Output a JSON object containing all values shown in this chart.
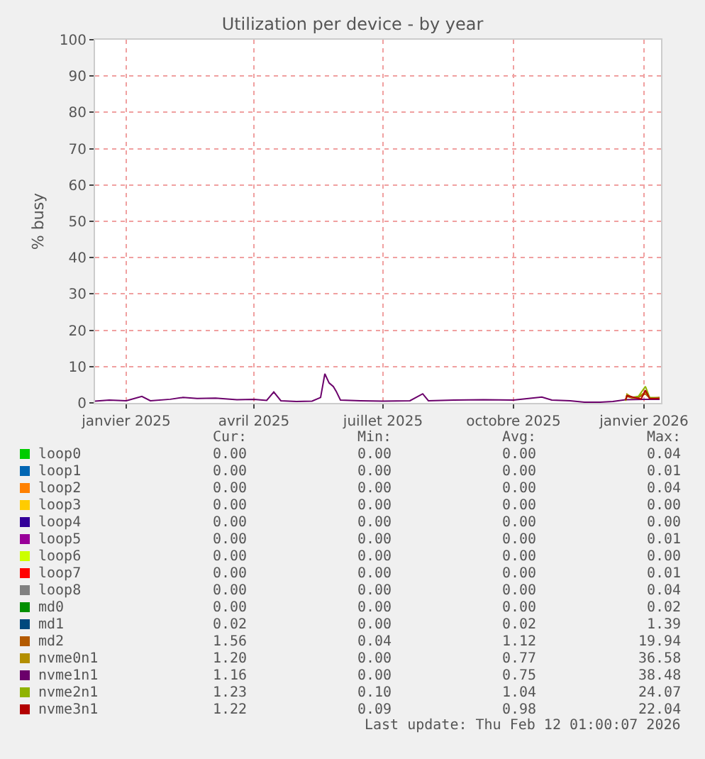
{
  "chart_data": {
    "type": "line",
    "title": "Utilization per device - by year",
    "ylabel": "% busy",
    "xlim": [
      "2024-12-10",
      "2026-01-13"
    ],
    "xticks": [
      {
        "value": "2025-01-01",
        "label": "janvier 2025"
      },
      {
        "value": "2025-04-01",
        "label": "avril 2025"
      },
      {
        "value": "2025-07-01",
        "label": "juillet 2025"
      },
      {
        "value": "2025-10-01",
        "label": "octobre 2025"
      },
      {
        "value": "2026-01-01",
        "label": "janvier 2026"
      }
    ],
    "ylim": [
      0,
      100
    ],
    "yticks": [
      0,
      10,
      20,
      30,
      40,
      50,
      60,
      70,
      80,
      90,
      100
    ],
    "grid": true,
    "legend": "bottom",
    "marker": "none",
    "line_style": "solid",
    "series": [
      {
        "name": "loop0",
        "color": "#00cc00"
      },
      {
        "name": "loop1",
        "color": "#0066b3"
      },
      {
        "name": "loop2",
        "color": "#ff8000"
      },
      {
        "name": "loop3",
        "color": "#ffcc00"
      },
      {
        "name": "loop4",
        "color": "#330099"
      },
      {
        "name": "loop5",
        "color": "#990099"
      },
      {
        "name": "loop6",
        "color": "#ccff00"
      },
      {
        "name": "loop7",
        "color": "#ff0000"
      },
      {
        "name": "loop8",
        "color": "#808080"
      },
      {
        "name": "md0",
        "color": "#008f00"
      },
      {
        "name": "md1",
        "color": "#00487d"
      },
      {
        "name": "md2",
        "color": "#b35a00",
        "x": [
          "2025-12-19",
          "2025-12-20",
          "2025-12-24",
          "2025-12-28",
          "2026-01-02",
          "2026-01-05",
          "2026-01-12"
        ],
        "values": [
          0.7,
          1.8,
          1.3,
          1.5,
          2.5,
          1.3,
          1.5
        ]
      },
      {
        "name": "nvme0n1",
        "color": "#b38f00",
        "x": [
          "2025-12-19",
          "2025-12-20",
          "2025-12-24",
          "2025-12-28",
          "2026-01-02",
          "2026-01-05",
          "2026-01-12"
        ],
        "values": [
          0.6,
          2.4,
          1.4,
          1.7,
          3.0,
          1.2,
          1.2
        ]
      },
      {
        "name": "nvme1n1",
        "color": "#6b006b",
        "x": [
          "2024-12-10",
          "2024-12-20",
          "2025-01-01",
          "2025-01-12",
          "2025-01-18",
          "2025-02-01",
          "2025-02-10",
          "2025-02-20",
          "2025-03-05",
          "2025-03-20",
          "2025-04-01",
          "2025-04-10",
          "2025-04-15",
          "2025-04-20",
          "2025-05-01",
          "2025-05-12",
          "2025-05-18",
          "2025-05-21",
          "2025-05-24",
          "2025-05-27",
          "2025-05-29",
          "2025-06-01",
          "2025-06-15",
          "2025-07-01",
          "2025-07-20",
          "2025-07-29",
          "2025-08-02",
          "2025-08-20",
          "2025-09-10",
          "2025-10-01",
          "2025-10-21",
          "2025-10-28",
          "2025-11-10",
          "2025-11-20",
          "2025-12-01",
          "2025-12-10",
          "2025-12-19",
          "2026-01-01",
          "2026-01-12"
        ],
        "values": [
          0.5,
          0.8,
          0.6,
          1.8,
          0.6,
          1.0,
          1.5,
          1.2,
          1.3,
          0.9,
          1.0,
          0.7,
          3.0,
          0.6,
          0.4,
          0.5,
          1.5,
          8.0,
          5.5,
          4.5,
          3.2,
          0.8,
          0.6,
          0.5,
          0.6,
          2.5,
          0.6,
          0.8,
          0.9,
          0.8,
          1.6,
          0.8,
          0.6,
          0.2,
          0.2,
          0.4,
          0.9,
          1.0,
          1.0
        ]
      },
      {
        "name": "nvme2n1",
        "color": "#8fb300",
        "x": [
          "2025-12-19",
          "2025-12-20",
          "2025-12-24",
          "2025-12-28",
          "2026-01-02",
          "2026-01-05",
          "2026-01-12"
        ],
        "values": [
          0.6,
          2.2,
          1.5,
          1.8,
          4.5,
          1.5,
          1.3
        ]
      },
      {
        "name": "nvme3n1",
        "color": "#b30000",
        "x": [
          "2025-12-19",
          "2025-12-20",
          "2025-12-26",
          "2025-12-30",
          "2026-01-02",
          "2026-01-05",
          "2026-01-12"
        ],
        "values": [
          0.8,
          2.0,
          1.4,
          1.1,
          3.5,
          1.2,
          1.2
        ]
      }
    ],
    "annotations": [
      "Cur:",
      "Min:",
      "Avg:",
      "Max:",
      "0.00",
      "0.00",
      "0.00",
      "0.04",
      "0.00",
      "0.00",
      "0.00",
      "0.01",
      "0.00",
      "0.00",
      "0.00",
      "0.04",
      "0.00",
      "0.00",
      "0.00",
      "0.00",
      "0.00",
      "0.00",
      "0.00",
      "0.00",
      "0.00",
      "0.00",
      "0.00",
      "0.01",
      "0.00",
      "0.00",
      "0.00",
      "0.00",
      "0.00",
      "0.00",
      "0.00",
      "0.01",
      "0.00",
      "0.00",
      "0.00",
      "0.04",
      "0.00",
      "0.00",
      "0.00",
      "0.02",
      "0.02",
      "0.00",
      "0.02",
      "1.39",
      "1.56",
      "0.04",
      "1.12",
      "19.94",
      "1.20",
      "0.00",
      "0.77",
      "36.58",
      "1.16",
      "0.00",
      "0.75",
      "38.48",
      "1.23",
      "0.10",
      "1.04",
      "24.07",
      "1.22",
      "0.09",
      "0.98",
      "22.04",
      "Last update: Thu Feb 12 01:00:07 2026"
    ]
  }
}
